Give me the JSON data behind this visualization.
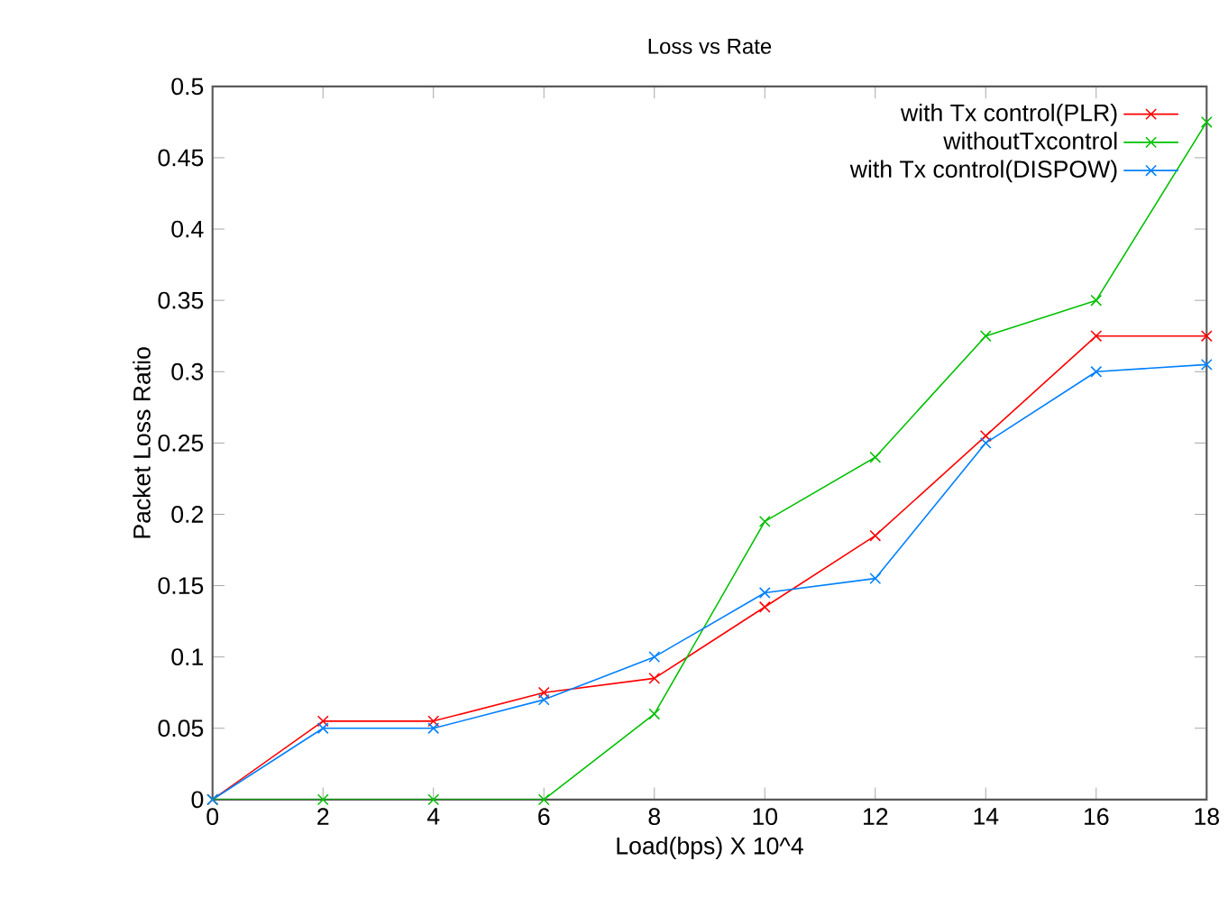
{
  "chart_data": {
    "type": "line",
    "title": "Loss vs Rate",
    "xlabel": "Load(bps) X 10^4",
    "ylabel": "Packet Loss Ratio",
    "x": [
      0,
      2,
      4,
      6,
      8,
      10,
      12,
      14,
      16,
      18
    ],
    "series": [
      {
        "name": "with Tx control(PLR)",
        "color": "#ff0000",
        "marker": "cross",
        "values": [
          0,
          0.055,
          0.055,
          0.075,
          0.085,
          0.135,
          0.185,
          0.255,
          0.325,
          0.325
        ]
      },
      {
        "name": "withoutTxcontrol",
        "color": "#00c000",
        "marker": "cross",
        "values": [
          0,
          0,
          0,
          0,
          0.06,
          0.195,
          0.24,
          0.325,
          0.35,
          0.475
        ]
      },
      {
        "name": "with Tx control(DISPOW)",
        "color": "#0080ff",
        "marker": "cross",
        "values": [
          0,
          0.05,
          0.05,
          0.07,
          0.1,
          0.145,
          0.155,
          0.25,
          0.3,
          0.305
        ]
      }
    ],
    "xlim": [
      0,
      18
    ],
    "xticks": [
      0,
      2,
      4,
      6,
      8,
      10,
      12,
      14,
      16,
      18
    ],
    "ylim": [
      0,
      0.5
    ],
    "yticks": [
      0,
      0.05,
      0.1,
      0.15,
      0.2,
      0.25,
      0.3,
      0.35,
      0.4,
      0.45,
      0.5
    ],
    "grid": false,
    "legend": "top right",
    "line_style": "solid"
  }
}
